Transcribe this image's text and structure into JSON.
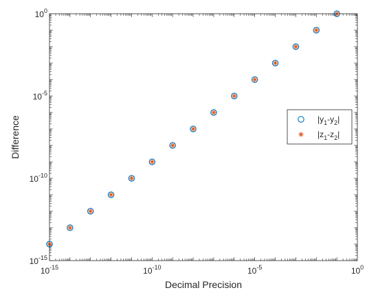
{
  "chart_data": {
    "type": "scatter",
    "xscale": "log",
    "yscale": "log",
    "xlabel": "Decimal Precision",
    "ylabel": "Difference",
    "xlim": [
      1e-15,
      1
    ],
    "ylim": [
      1e-15,
      1
    ],
    "x_ticks": [
      1e-15,
      1e-10,
      1e-05,
      1
    ],
    "y_ticks": [
      1e-15,
      1e-10,
      1e-05,
      1
    ],
    "x_tick_labels": [
      {
        "base": "10",
        "exp": "-15"
      },
      {
        "base": "10",
        "exp": "-10"
      },
      {
        "base": "10",
        "exp": "-5"
      },
      {
        "base": "10",
        "exp": "0"
      }
    ],
    "y_tick_labels": [
      {
        "base": "10",
        "exp": "-15"
      },
      {
        "base": "10",
        "exp": "-10"
      },
      {
        "base": "10",
        "exp": "-5"
      },
      {
        "base": "10",
        "exp": "0"
      }
    ],
    "grid": false,
    "legend_position": "right",
    "series": [
      {
        "name": "|y1-y2|",
        "marker": "circle",
        "color": "#0072BD",
        "x": [
          1e-15,
          1e-14,
          1e-13,
          1e-12,
          1e-11,
          1e-10,
          1e-09,
          1e-08,
          1e-07,
          1e-06,
          1e-05,
          0.0001,
          0.001,
          0.01,
          0.1
        ],
        "y": [
          1e-14,
          1e-13,
          1e-12,
          1e-11,
          1e-10,
          1e-09,
          1e-08,
          1e-07,
          1e-06,
          1e-05,
          0.0001,
          0.001,
          0.01,
          0.1,
          1
        ]
      },
      {
        "name": "|z1-z2|",
        "marker": "asterisk",
        "color": "#D95319",
        "x": [
          1e-15,
          1e-14,
          1e-13,
          1e-12,
          1e-11,
          1e-10,
          1e-09,
          1e-08,
          1e-07,
          1e-06,
          1e-05,
          0.0001,
          0.001,
          0.01,
          0.1
        ],
        "y": [
          1e-14,
          1e-13,
          1e-12,
          1e-11,
          1e-10,
          1e-09,
          1e-08,
          1e-07,
          1e-06,
          1e-05,
          0.0001,
          0.001,
          0.01,
          0.1,
          1
        ]
      }
    ],
    "legend": [
      {
        "marker": "circle",
        "color": "#0072BD",
        "parts": [
          {
            "t": "|y"
          },
          {
            "t": "1",
            "sub": true
          },
          {
            "t": "-y"
          },
          {
            "t": "2",
            "sub": true
          },
          {
            "t": "|"
          }
        ]
      },
      {
        "marker": "asterisk",
        "color": "#D95319",
        "parts": [
          {
            "t": "|z"
          },
          {
            "t": "1",
            "sub": true
          },
          {
            "t": "-z"
          },
          {
            "t": "2",
            "sub": true
          },
          {
            "t": "|"
          }
        ]
      }
    ]
  }
}
